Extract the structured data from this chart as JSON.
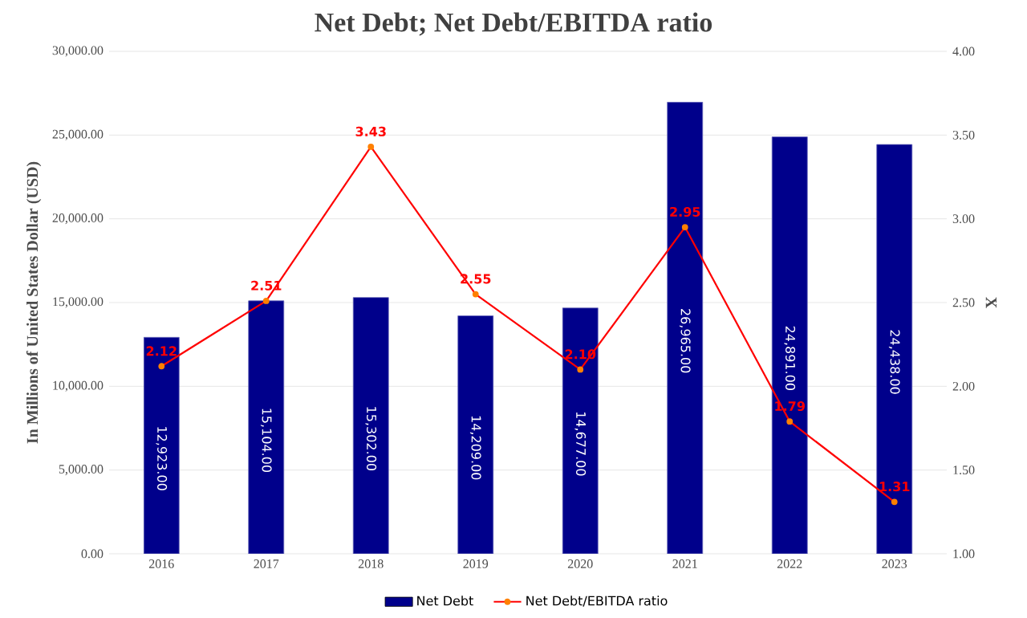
{
  "chart_data": {
    "type": "bar",
    "title": "Net Debt; Net Debt/EBITDA ratio",
    "ylabel": "In Millions of United States Dollar (USD)",
    "y2label": "X",
    "categories": [
      "2016",
      "2017",
      "2018",
      "2019",
      "2020",
      "2021",
      "2022",
      "2023"
    ],
    "series": [
      {
        "name": "Net Debt",
        "color": "#00008b",
        "values": [
          12923,
          15104,
          15302,
          14209,
          14677,
          26965,
          24891,
          24438
        ],
        "value_labels": [
          "12,923.00",
          "15,104.00",
          "15,302.00",
          "14,209.00",
          "14,677.00",
          "26,965.00",
          "24,891.00",
          "24,438.00"
        ]
      },
      {
        "name": "Net Debt/EBITDA ratio",
        "type": "line",
        "axis": "y2",
        "color": "#ff0000",
        "marker": "circle",
        "values": [
          2.12,
          2.51,
          3.43,
          2.55,
          2.1,
          2.95,
          1.79,
          1.31
        ],
        "value_labels": [
          "2.12",
          "2.51",
          "3.43",
          "2.55",
          "2.10",
          "2.95",
          "1.79",
          "1.31"
        ]
      }
    ],
    "ylim": [
      0,
      30000
    ],
    "yticks": [
      {
        "value": 0,
        "label": "0.00"
      },
      {
        "value": 5000,
        "label": "5,000.00"
      },
      {
        "value": 10000,
        "label": "10,000.00"
      },
      {
        "value": 15000,
        "label": "15,000.00"
      },
      {
        "value": 20000,
        "label": "20,000.00"
      },
      {
        "value": 25000,
        "label": "25,000.00"
      },
      {
        "value": 30000,
        "label": "30,000.00"
      }
    ],
    "y2lim": [
      1,
      4
    ],
    "y2ticks": [
      {
        "value": 1,
        "label": "1.00"
      },
      {
        "value": 1.5,
        "label": "1.50"
      },
      {
        "value": 2,
        "label": "2.00"
      },
      {
        "value": 2.5,
        "label": "2.50"
      },
      {
        "value": 3,
        "label": "3.00"
      },
      {
        "value": 3.5,
        "label": "3.50"
      },
      {
        "value": 4,
        "label": "4.00"
      }
    ],
    "grid": "y",
    "legend": "bottom"
  }
}
